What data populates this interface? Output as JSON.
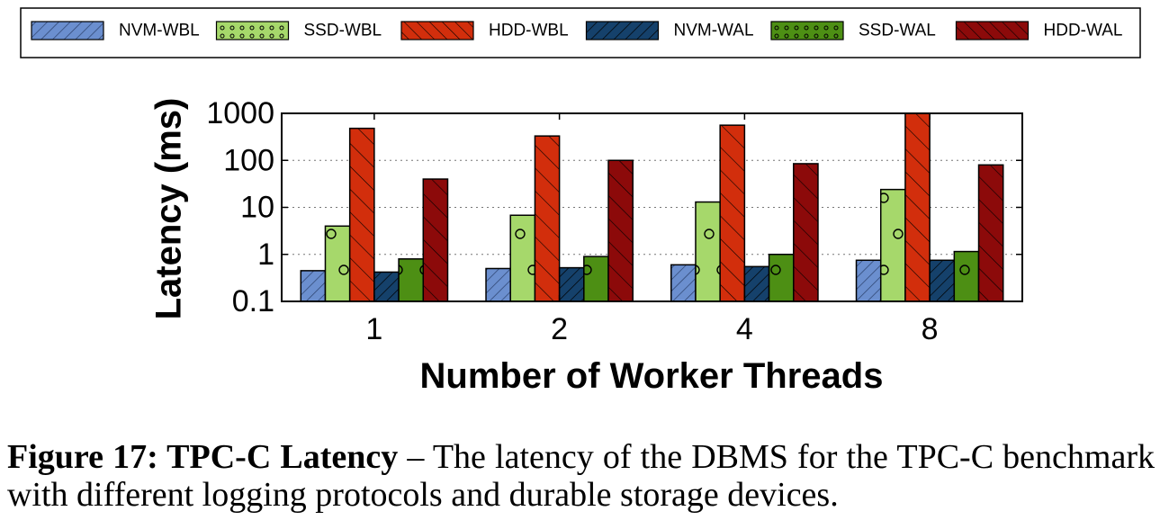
{
  "chart_data": {
    "type": "bar",
    "title": "",
    "xlabel": "Number of Worker Threads",
    "ylabel": "Latency (ms)",
    "categories": [
      "1",
      "2",
      "4",
      "8"
    ],
    "y_scale": "log",
    "ylim": [
      0.1,
      1000
    ],
    "yticks": [
      "0.1",
      "1",
      "10",
      "100",
      "1000"
    ],
    "ytick_values": [
      0.1,
      1,
      10,
      100,
      1000
    ],
    "grid": "horizontal dotted",
    "legend_position": "top",
    "series": [
      {
        "name": "NVM-WBL",
        "color": "#6b8fcf",
        "pattern": "diagonal-hatch",
        "values": [
          0.45,
          0.5,
          0.6,
          0.75
        ]
      },
      {
        "name": "SSD-WBL",
        "color": "#a6d86b",
        "pattern": "circles",
        "values": [
          4.0,
          6.8,
          13.0,
          24.0
        ]
      },
      {
        "name": "HDD-WBL",
        "color": "#d22e0c",
        "pattern": "backslash-hatch",
        "values": [
          480,
          330,
          560,
          1000
        ]
      },
      {
        "name": "NVM-WAL",
        "color": "#15416b",
        "pattern": "diagonal-hatch",
        "values": [
          0.42,
          0.52,
          0.55,
          0.75
        ]
      },
      {
        "name": "SSD-WAL",
        "color": "#4d8f14",
        "pattern": "circles",
        "values": [
          0.8,
          0.9,
          1.0,
          1.15
        ]
      },
      {
        "name": "HDD-WAL",
        "color": "#8c0a0a",
        "pattern": "backslash-hatch",
        "values": [
          40,
          100,
          85,
          80
        ]
      }
    ]
  },
  "caption": {
    "label": "Figure 17: TPC-C Latency",
    "text": " – The latency of the DBMS for the TPC-C benchmark with different logging protocols and durable storage devices."
  }
}
